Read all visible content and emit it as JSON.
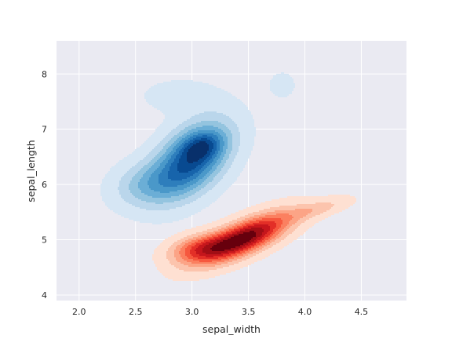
{
  "chart_data": {
    "type": "kde-contour",
    "xlabel": "sepal_width",
    "ylabel": "sepal_length",
    "xlim": [
      1.8,
      4.9
    ],
    "ylim": [
      3.9,
      8.6
    ],
    "x_ticks": [
      2.0,
      2.5,
      3.0,
      3.5,
      4.0,
      4.5
    ],
    "x_tick_labels": [
      "2.0",
      "2.5",
      "3.0",
      "3.5",
      "4.0",
      "4.5"
    ],
    "y_ticks": [
      4,
      5,
      6,
      7,
      8
    ],
    "y_tick_labels": [
      "4",
      "5",
      "6",
      "7",
      "8"
    ],
    "grid": true,
    "background": "#eaeaf2",
    "levels": 9,
    "series": [
      {
        "colormap": "Reds",
        "colors": [
          "#fee0d2",
          "#fcc4ad",
          "#fca486",
          "#fb8060",
          "#f6583e",
          "#e32f27",
          "#c5161c",
          "#a10e15",
          "#67000d"
        ],
        "components": [
          {
            "center": [
              3.45,
              5.02
            ],
            "cov": [
              [
                0.075,
                0.06
              ],
              [
                0.06,
                0.09
              ]
            ],
            "weight": 1.0
          },
          {
            "center": [
              3.05,
              4.85
            ],
            "cov": [
              [
                0.03,
                0.01
              ],
              [
                0.01,
                0.03
              ]
            ],
            "weight": 0.45
          },
          {
            "center": [
              4.1,
              5.55
            ],
            "cov": [
              [
                0.04,
                0.02
              ],
              [
                0.02,
                0.02
              ]
            ],
            "weight": 0.18
          }
        ]
      },
      {
        "colormap": "Blues",
        "colors": [
          "#d6e6f4",
          "#bad6eb",
          "#94c4df",
          "#6baed6",
          "#4a98c9",
          "#2e7ebc",
          "#1764ab",
          "#084a91",
          "#08306b"
        ],
        "components": [
          {
            "center": [
              3.0,
              6.45
            ],
            "cov": [
              [
                0.05,
                0.045
              ],
              [
                0.045,
                0.2
              ]
            ],
            "weight": 1.0
          },
          {
            "center": [
              2.6,
              6.0
            ],
            "cov": [
              [
                0.04,
                0.01
              ],
              [
                0.01,
                0.08
              ]
            ],
            "weight": 0.35
          },
          {
            "center": [
              3.1,
              6.7
            ],
            "cov": [
              [
                0.015,
                0.005
              ],
              [
                0.005,
                0.03
              ]
            ],
            "weight": 0.35
          },
          {
            "center": [
              2.9,
              7.6
            ],
            "cov": [
              [
                0.05,
                0.0
              ],
              [
                0.0,
                0.04
              ]
            ],
            "weight": 0.12
          },
          {
            "center": [
              3.8,
              7.8
            ],
            "cov": [
              [
                0.012,
                0.0
              ],
              [
                0.0,
                0.05
              ]
            ],
            "weight": 0.07
          }
        ]
      }
    ]
  }
}
